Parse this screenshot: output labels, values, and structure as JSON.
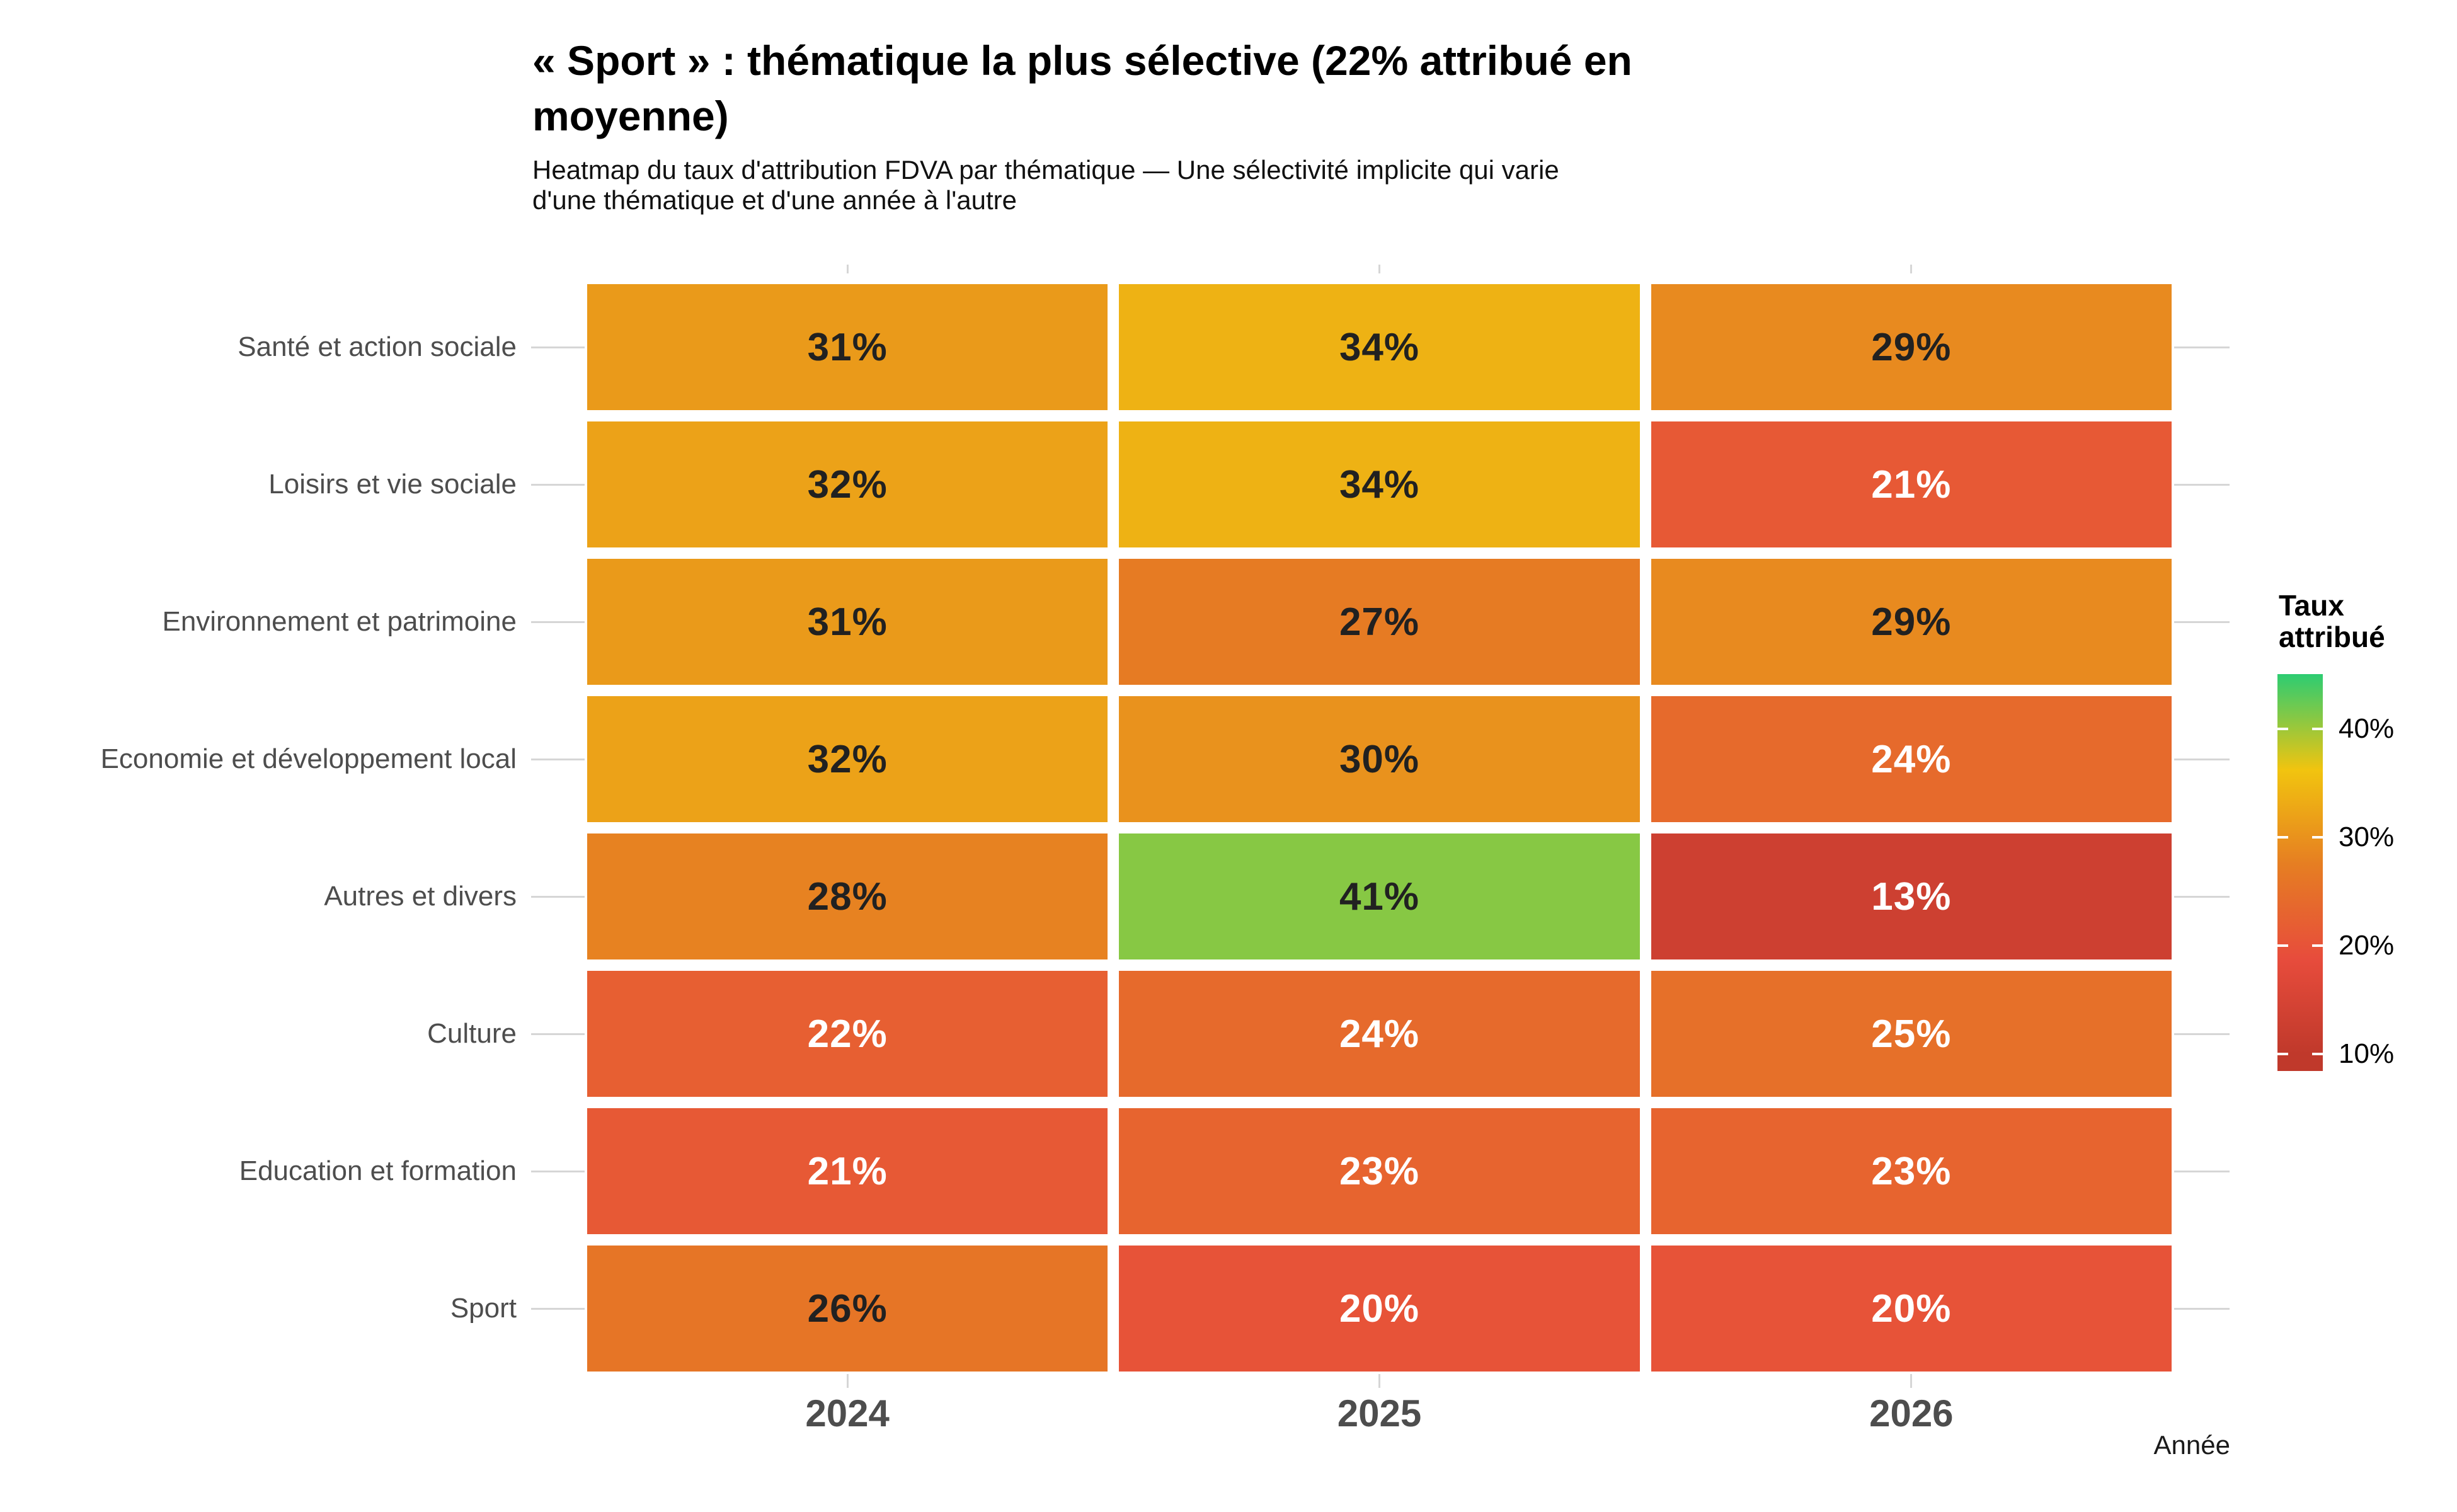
{
  "title": {
    "lines": [
      "« Sport » : thématique la plus sélective (22% attribué en",
      "moyenne)"
    ]
  },
  "subtitle": {
    "lines": [
      "Heatmap du taux d'attribution FDVA par thématique — Une sélectivité implicite qui varie",
      "d'une thématique et d'une année à l'autre"
    ]
  },
  "chart_data": {
    "type": "heatmap",
    "x": [
      "2024",
      "2025",
      "2026"
    ],
    "xlabel": "Année",
    "rows": [
      "Santé et action sociale",
      "Loisirs et vie sociale",
      "Environnement et patrimoine",
      "Economie et développement local",
      "Autres et divers",
      "Culture",
      "Education et formation",
      "Sport"
    ],
    "values": [
      [
        31,
        34,
        29
      ],
      [
        32,
        34,
        21
      ],
      [
        31,
        27,
        29
      ],
      [
        32,
        30,
        24
      ],
      [
        28,
        41,
        13
      ],
      [
        22,
        24,
        25
      ],
      [
        21,
        23,
        23
      ],
      [
        26,
        20,
        20
      ]
    ],
    "label_suffix": "%",
    "dark_text_min": 26,
    "legend": {
      "title": "Taux attribué",
      "ticks": [
        {
          "value": 40,
          "label": "40%"
        },
        {
          "value": 30,
          "label": "30%"
        },
        {
          "value": 20,
          "label": "20%"
        },
        {
          "value": 10,
          "label": "10%"
        }
      ],
      "domain_top": 45.06,
      "domain_bottom": 8.43,
      "palette": [
        {
          "value": 10,
          "color": "#c0392b"
        },
        {
          "value": 18.75,
          "color": "#e74c3c"
        },
        {
          "value": 27.5,
          "color": "#e67e22"
        },
        {
          "value": 36.25,
          "color": "#f1c40f"
        },
        {
          "value": 45,
          "color": "#2ecc71"
        }
      ]
    }
  },
  "colors": {
    "dark_text": "#212121",
    "light_text": "#ffffff",
    "axis_text": "#4d4d4d",
    "grid": "#d6d6d6",
    "background": "#ffffff"
  }
}
